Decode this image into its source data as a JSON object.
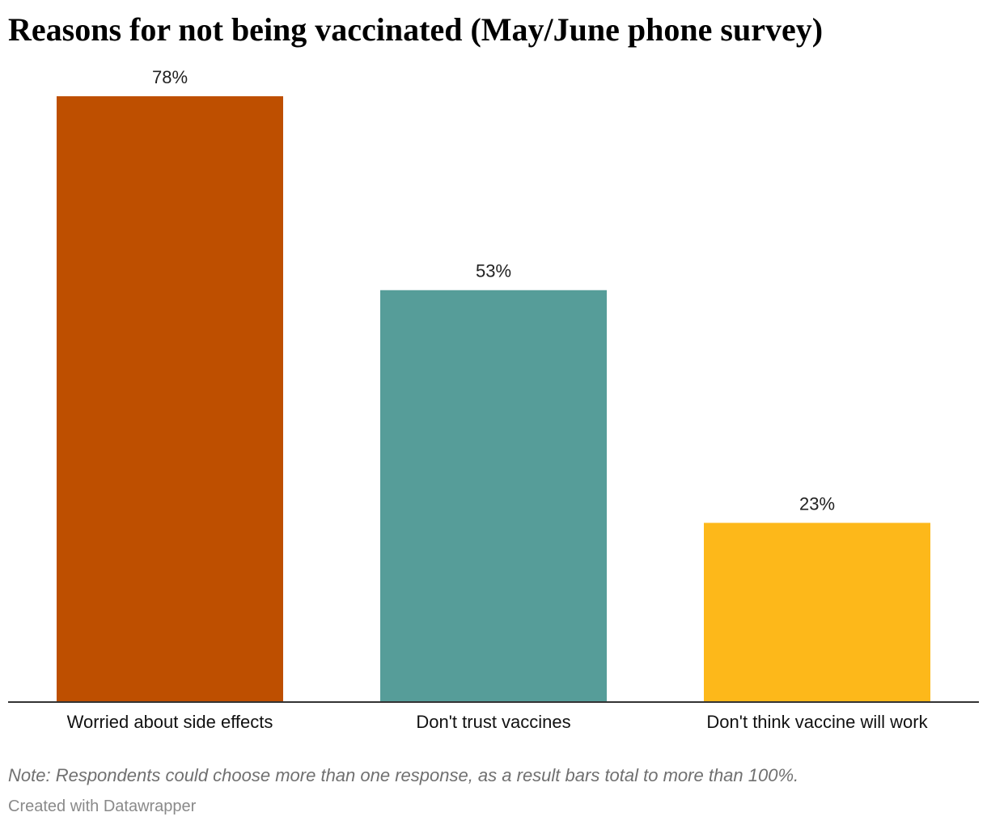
{
  "chart_data": {
    "type": "bar",
    "title": "Reasons for not being vaccinated (May/June phone survey)",
    "categories": [
      "Worried about side effects",
      "Don't trust vaccines",
      "Don't think vaccine will work"
    ],
    "values": [
      78,
      53,
      23
    ],
    "value_labels": [
      "78%",
      "53%",
      "23%"
    ],
    "colors": [
      "#be4f00",
      "#569d99",
      "#fdb81a"
    ],
    "ylim": [
      0,
      100
    ],
    "grid": false,
    "legend": "none",
    "note": "Note: Respondents could choose more than one response, as a result bars total to more than 100%.",
    "credit": "Created with Datawrapper"
  }
}
